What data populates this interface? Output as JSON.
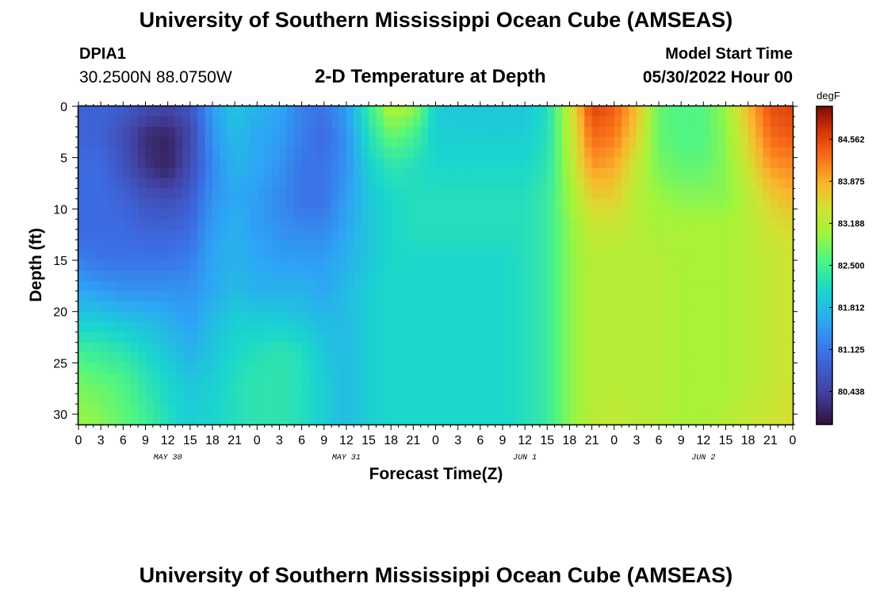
{
  "header": {
    "title": "University of Southern Mississippi Ocean Cube (AMSEAS)",
    "station_id": "DPIA1",
    "station_coords": "30.2500N  88.0750W",
    "model_start_label": "Model Start Time",
    "model_start_value": "05/30/2022 Hour 00"
  },
  "footer": {
    "title": "University of Southern Mississippi Ocean Cube (AMSEAS)"
  },
  "chart_data": {
    "type": "heatmap",
    "title": "2-D Temperature at Depth",
    "xlabel": "Forecast Time(Z)",
    "ylabel": "Depth (ft)",
    "x_ticks": [
      "0",
      "3",
      "6",
      "9",
      "12",
      "15",
      "18",
      "21",
      "0",
      "3",
      "6",
      "9",
      "12",
      "15",
      "18",
      "21",
      "0",
      "3",
      "6",
      "9",
      "12",
      "15",
      "18",
      "21",
      "0",
      "3",
      "6",
      "9",
      "12",
      "15",
      "18",
      "21",
      "0"
    ],
    "x_hours_range": [
      0,
      96
    ],
    "day_labels": [
      {
        "hour": 12,
        "label": "MAY 30"
      },
      {
        "hour": 36,
        "label": "MAY 31"
      },
      {
        "hour": 60,
        "label": "JUN 1"
      },
      {
        "hour": 84,
        "label": "JUN 2"
      }
    ],
    "y_ticks": [
      0,
      5,
      10,
      15,
      20,
      25,
      30
    ],
    "ylim": [
      0,
      31
    ],
    "y_inverted": true,
    "colorbar": {
      "unit": "degF",
      "tick_labels": [
        "84.562",
        "83.875",
        "83.188",
        "82.500",
        "81.812",
        "81.125",
        "80.438"
      ],
      "tick_values": [
        84.562,
        83.875,
        83.188,
        82.5,
        81.812,
        81.125,
        80.438
      ],
      "range": [
        79.9,
        85.1
      ]
    },
    "grid_depths_ft": [
      0,
      3,
      6,
      9,
      12,
      15,
      18,
      21,
      24,
      27,
      31
    ],
    "grid_hours": [
      0,
      3,
      6,
      9,
      12,
      15,
      18,
      21,
      24,
      27,
      30,
      33,
      36,
      39,
      42,
      45,
      48,
      51,
      54,
      57,
      60,
      63,
      66,
      69,
      72,
      75,
      78,
      81,
      84,
      87,
      90,
      93,
      96
    ],
    "values_degF": [
      [
        80.9,
        80.9,
        80.8,
        80.6,
        80.5,
        80.7,
        81.5,
        81.9,
        81.7,
        81.6,
        81.2,
        81.1,
        81.5,
        82.4,
        83.2,
        83.0,
        82.0,
        81.9,
        81.9,
        81.9,
        81.9,
        82.2,
        83.3,
        84.6,
        84.4,
        83.8,
        82.7,
        82.6,
        82.6,
        83.0,
        83.8,
        84.5,
        84.6
      ],
      [
        80.9,
        80.9,
        80.6,
        80.2,
        80.1,
        80.5,
        81.4,
        81.8,
        81.6,
        81.5,
        81.2,
        81.0,
        81.4,
        82.2,
        82.7,
        82.5,
        82.0,
        82.0,
        82.0,
        82.0,
        82.0,
        82.2,
        83.2,
        84.3,
        84.2,
        83.6,
        82.7,
        82.6,
        82.6,
        82.9,
        83.6,
        84.3,
        84.4
      ],
      [
        81.0,
        81.0,
        80.7,
        80.3,
        80.1,
        80.6,
        81.3,
        81.7,
        81.6,
        81.4,
        81.1,
        81.1,
        81.4,
        82.0,
        82.3,
        82.2,
        82.1,
        82.1,
        82.1,
        82.1,
        82.1,
        82.3,
        83.1,
        84.0,
        83.9,
        83.3,
        82.8,
        82.7,
        82.7,
        82.9,
        83.4,
        84.0,
        84.1
      ],
      [
        81.0,
        81.0,
        80.9,
        80.7,
        80.6,
        80.8,
        81.4,
        81.6,
        81.5,
        81.3,
        81.1,
        81.1,
        81.5,
        81.9,
        82.1,
        82.2,
        82.2,
        82.2,
        82.2,
        82.2,
        82.2,
        82.4,
        83.0,
        83.6,
        83.6,
        83.2,
        83.0,
        82.9,
        82.9,
        82.9,
        83.2,
        83.6,
        83.8
      ],
      [
        81.0,
        81.0,
        81.0,
        80.9,
        80.9,
        81.0,
        81.5,
        81.7,
        81.5,
        81.4,
        81.3,
        81.3,
        81.6,
        81.9,
        82.1,
        82.2,
        82.2,
        82.2,
        82.2,
        82.2,
        82.2,
        82.4,
        82.9,
        83.3,
        83.3,
        83.2,
        83.1,
        83.1,
        83.1,
        83.1,
        83.2,
        83.4,
        83.5
      ],
      [
        81.2,
        81.1,
        81.1,
        81.1,
        81.1,
        81.2,
        81.6,
        81.7,
        81.6,
        81.5,
        81.5,
        81.5,
        81.7,
        81.9,
        82.1,
        82.1,
        82.1,
        82.1,
        82.1,
        82.1,
        82.2,
        82.4,
        82.9,
        83.2,
        83.2,
        83.2,
        83.2,
        83.1,
        83.1,
        83.1,
        83.2,
        83.3,
        83.4
      ],
      [
        81.6,
        81.5,
        81.4,
        81.4,
        81.4,
        81.4,
        81.6,
        81.8,
        81.7,
        81.7,
        81.7,
        81.6,
        81.8,
        82.0,
        82.1,
        82.1,
        82.1,
        82.1,
        82.1,
        82.1,
        82.2,
        82.4,
        82.9,
        83.2,
        83.2,
        83.2,
        83.2,
        83.1,
        83.1,
        83.1,
        83.2,
        83.3,
        83.4
      ],
      [
        82.0,
        82.0,
        81.9,
        81.8,
        81.7,
        81.5,
        81.8,
        82.0,
        82.0,
        82.0,
        81.9,
        81.8,
        81.8,
        82.0,
        82.1,
        82.1,
        82.1,
        82.1,
        82.1,
        82.1,
        82.2,
        82.4,
        82.9,
        83.2,
        83.2,
        83.2,
        83.2,
        83.1,
        83.1,
        83.1,
        83.2,
        83.3,
        83.4
      ],
      [
        82.5,
        82.4,
        82.3,
        82.1,
        81.9,
        81.7,
        81.9,
        82.1,
        82.2,
        82.3,
        82.2,
        81.9,
        81.8,
        82.0,
        82.1,
        82.1,
        82.1,
        82.1,
        82.1,
        82.1,
        82.2,
        82.4,
        82.9,
        83.2,
        83.2,
        83.2,
        83.2,
        83.1,
        83.1,
        83.1,
        83.2,
        83.3,
        83.4
      ],
      [
        82.8,
        82.7,
        82.6,
        82.3,
        82.1,
        81.9,
        82.0,
        82.2,
        82.3,
        82.3,
        82.2,
        82.0,
        81.8,
        82.0,
        82.1,
        82.1,
        82.1,
        82.1,
        82.1,
        82.1,
        82.2,
        82.4,
        82.9,
        83.2,
        83.2,
        83.2,
        83.2,
        83.1,
        83.1,
        83.1,
        83.2,
        83.3,
        83.4
      ],
      [
        83.0,
        82.9,
        82.7,
        82.5,
        82.2,
        82.0,
        82.1,
        82.2,
        82.3,
        82.3,
        82.2,
        82.0,
        81.8,
        82.0,
        82.1,
        82.1,
        82.1,
        82.1,
        82.1,
        82.1,
        82.2,
        82.4,
        82.9,
        83.2,
        83.3,
        83.2,
        83.2,
        83.1,
        83.1,
        83.2,
        83.3,
        83.4,
        83.5
      ]
    ]
  }
}
